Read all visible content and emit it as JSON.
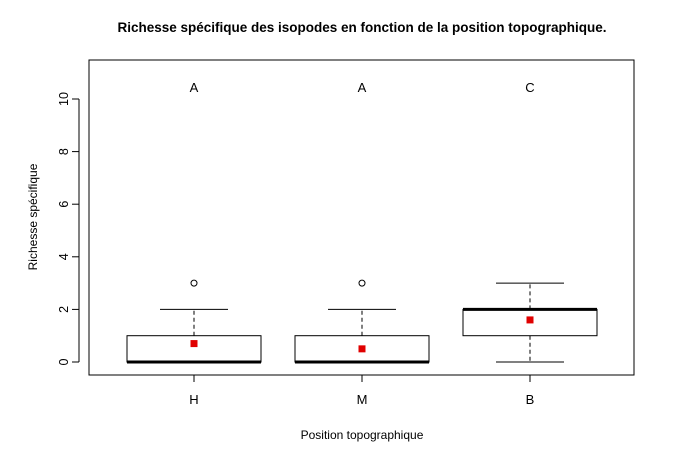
{
  "chart_data": {
    "type": "boxplot",
    "title": "Richesse spécifique des isopodes en fonction de la position topographique.",
    "xlabel": "Position topographique",
    "ylabel": "Richesse spécifique",
    "ylim": [
      0,
      11
    ],
    "yticks": [
      0,
      2,
      4,
      6,
      8,
      10
    ],
    "categories": [
      "H",
      "M",
      "B"
    ],
    "boxes": [
      {
        "q1": 0,
        "median": 0,
        "q3": 1,
        "whisker_low": 0,
        "whisker_high": 2,
        "outliers": [
          3
        ],
        "mean": 0.7
      },
      {
        "q1": 0,
        "median": 0,
        "q3": 1,
        "whisker_low": 0,
        "whisker_high": 2,
        "outliers": [
          3
        ],
        "mean": 0.5
      },
      {
        "q1": 1,
        "median": 2,
        "q3": 2,
        "whisker_low": 0,
        "whisker_high": 3,
        "outliers": [],
        "mean": 1.6
      }
    ],
    "group_letters": [
      "A",
      "A",
      "C"
    ],
    "mean_marker_color": "#e00000",
    "grid": false
  }
}
